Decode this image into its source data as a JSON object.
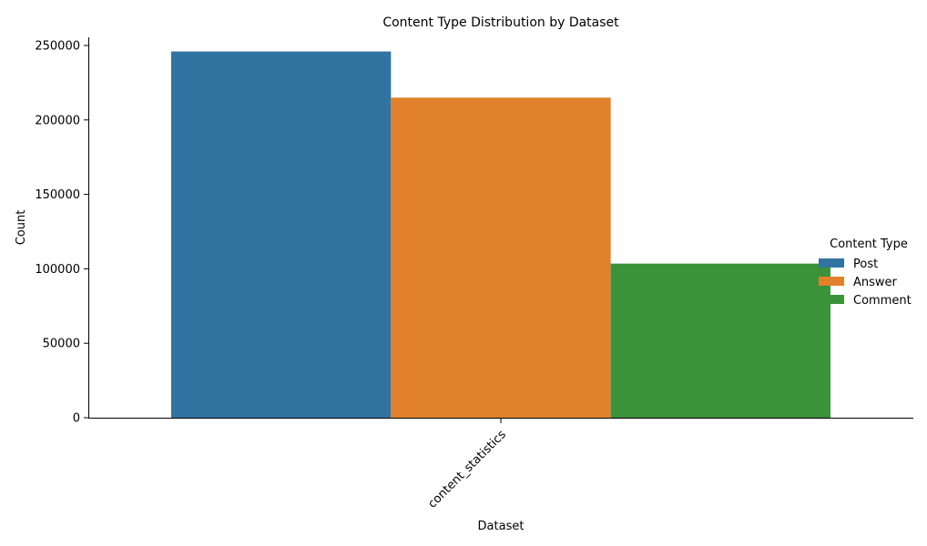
{
  "chart_data": {
    "type": "bar",
    "title": "Content Type Distribution by Dataset",
    "xlabel": "Dataset",
    "ylabel": "Count",
    "categories": [
      "content_statistics"
    ],
    "series": [
      {
        "name": "Post",
        "values": [
          246000
        ],
        "color": "#3274a1"
      },
      {
        "name": "Answer",
        "values": [
          215000
        ],
        "color": "#e1812c"
      },
      {
        "name": "Comment",
        "values": [
          103500
        ],
        "color": "#3a923a"
      }
    ],
    "ylim": [
      0,
      250000
    ],
    "yticks": [
      0,
      50000,
      100000,
      150000,
      200000,
      250000
    ],
    "ytick_labels": [
      "0",
      "50000",
      "100000",
      "150000",
      "200000",
      "250000"
    ],
    "legend_title": "Content Type",
    "legend_position": "right",
    "grid": false
  }
}
